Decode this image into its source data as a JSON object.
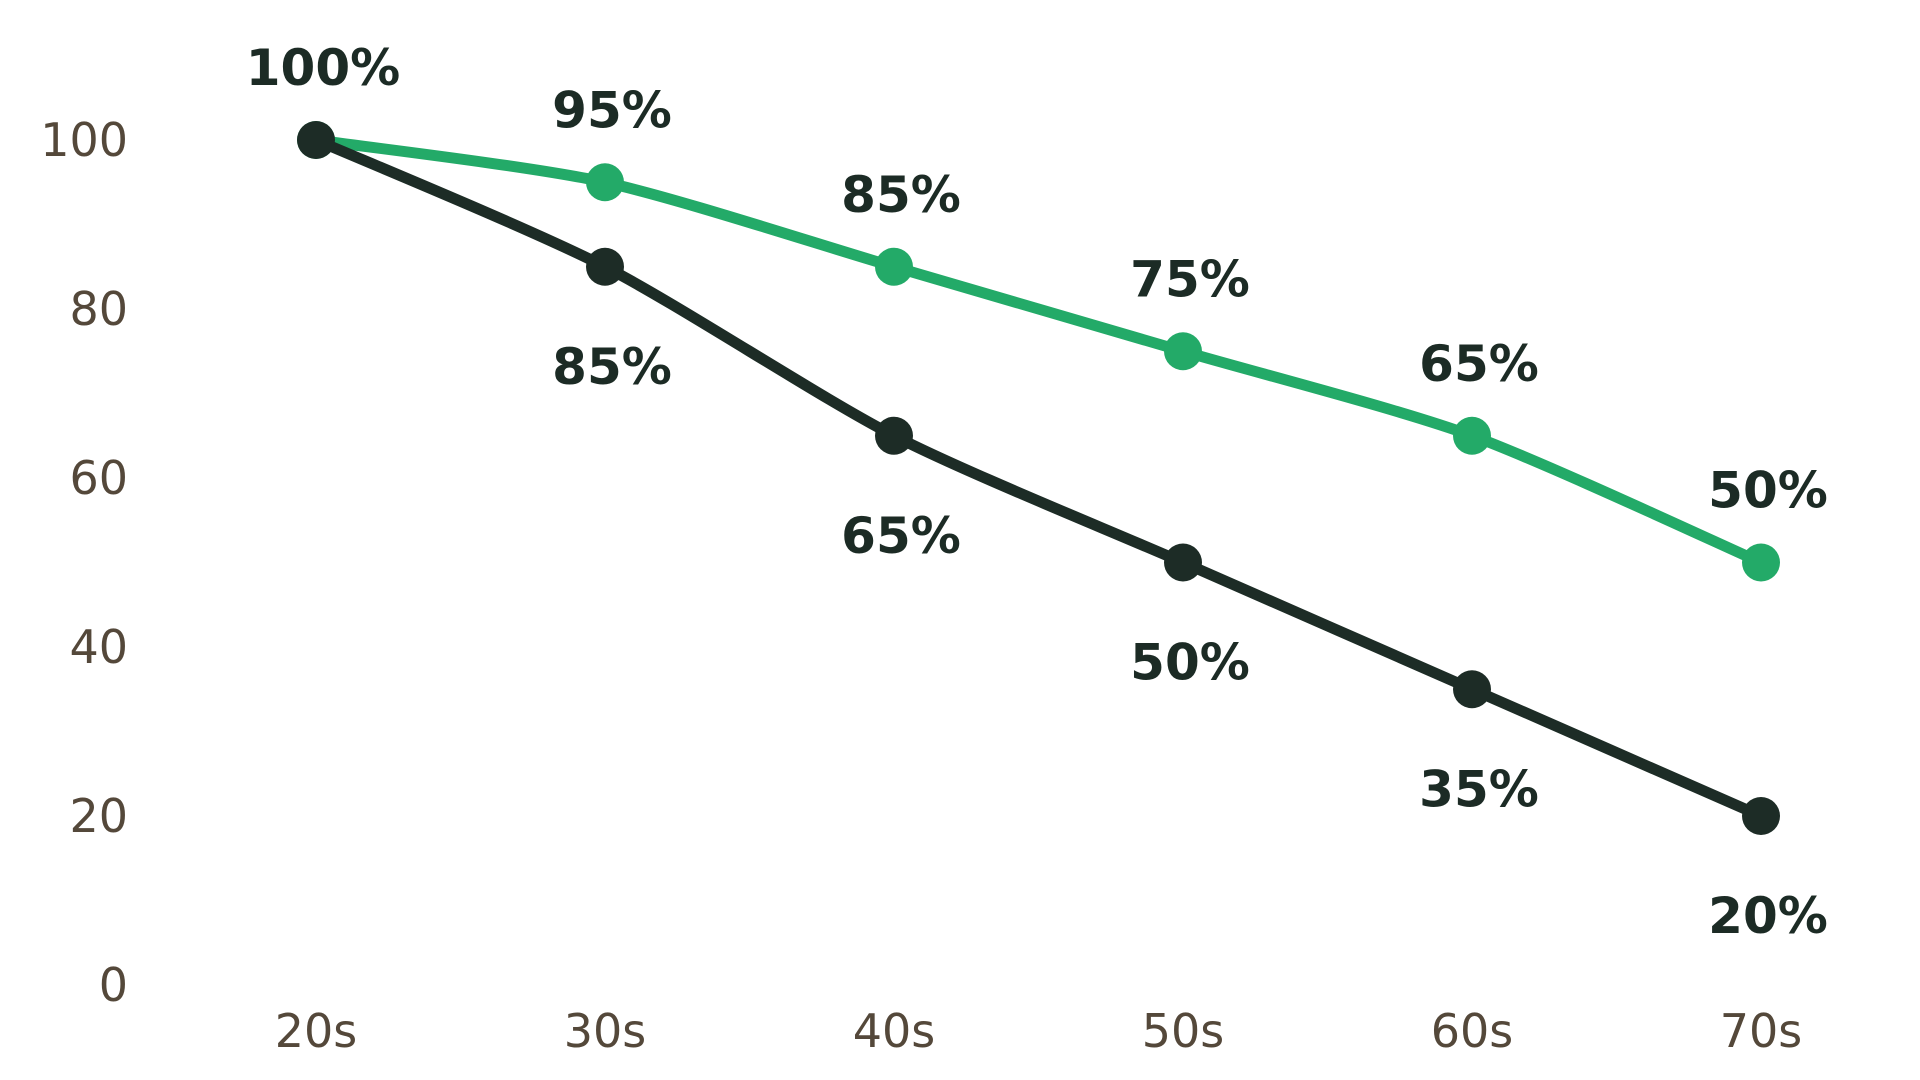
{
  "page": {
    "background": "#ffffff"
  },
  "colors": {
    "series_green": "#23aa68",
    "series_dark": "#1d2c26",
    "data_label": "#1c2b25",
    "axis_label": "#54483a"
  },
  "chart_data": {
    "type": "line",
    "title": "",
    "xlabel": "",
    "ylabel": "",
    "x_tick_labels": [
      "20s",
      "30s",
      "40s",
      "50s",
      "60s",
      "70s"
    ],
    "y_ticks": [
      100,
      80,
      60,
      40,
      20,
      0
    ],
    "y_tick_labels": [
      "100",
      "80",
      "60",
      "40",
      "20",
      "0"
    ],
    "ylim": [
      0,
      100
    ],
    "grid": false,
    "legend": "none",
    "marker": "circle",
    "series": [
      {
        "name": "upper-green-series",
        "color": "green",
        "values": [
          100,
          95,
          85,
          75,
          65,
          50
        ],
        "point_labels": [
          "",
          "95%",
          "85%",
          "75%",
          "65%",
          "50%"
        ],
        "label_side": [
          "above",
          "above",
          "above",
          "above",
          "above",
          "above"
        ]
      },
      {
        "name": "lower-dark-series",
        "color": "dark",
        "values": [
          100,
          85,
          65,
          50,
          35,
          20
        ],
        "point_labels": [
          "100%",
          "85%",
          "65%",
          "50%",
          "35%",
          "20%"
        ],
        "label_side": [
          "above",
          "below",
          "below",
          "below",
          "below",
          "below"
        ]
      }
    ]
  }
}
